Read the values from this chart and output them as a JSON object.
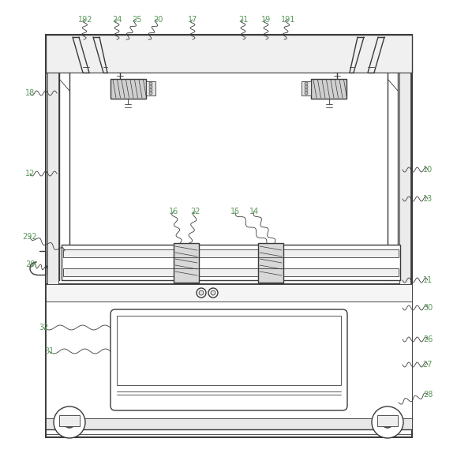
{
  "fig_width": 5.79,
  "fig_height": 5.79,
  "dpi": 100,
  "bg_color": "#ffffff",
  "line_color": "#3a3a3a",
  "label_color": "#5a9a5a",
  "label_fontsize": 7.0
}
